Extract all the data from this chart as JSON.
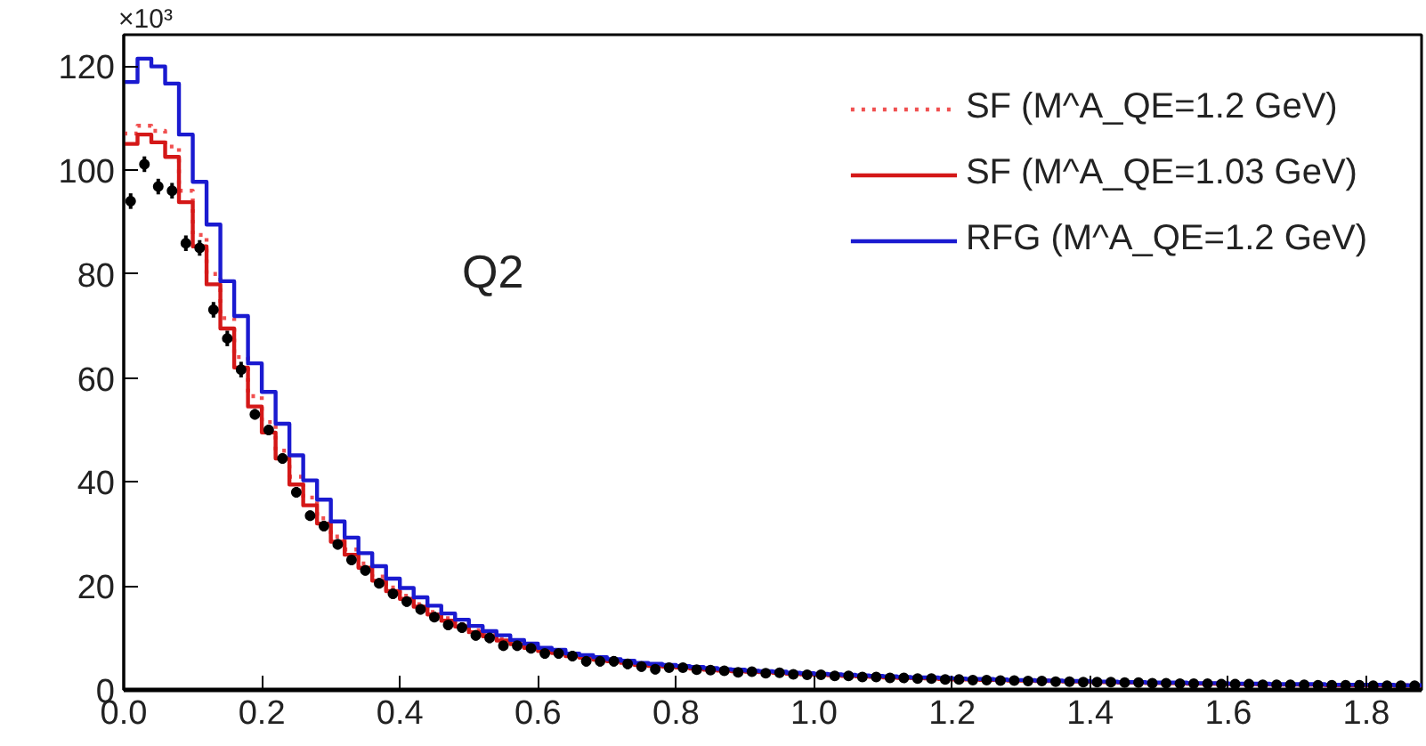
{
  "chart_data": {
    "type": "histogram",
    "bins": [
      0,
      0.02,
      0.04,
      0.06,
      0.08,
      0.1,
      0.12,
      0.14,
      0.16,
      0.18,
      0.2,
      0.22,
      0.24,
      0.26,
      0.28,
      0.3,
      0.32,
      0.34,
      0.36,
      0.38,
      0.4,
      0.42,
      0.44,
      0.46,
      0.48,
      0.5,
      0.52,
      0.54,
      0.56,
      0.58,
      0.6,
      0.62,
      0.64,
      0.66,
      0.68,
      0.7,
      0.72,
      0.74,
      0.76,
      0.78,
      0.8,
      0.82,
      0.84,
      0.86,
      0.88,
      0.9,
      0.92,
      0.94,
      0.96,
      0.98,
      1.0,
      1.02,
      1.04,
      1.06,
      1.08,
      1.1,
      1.12,
      1.14,
      1.16,
      1.18,
      1.2,
      1.22,
      1.24,
      1.26,
      1.28,
      1.3,
      1.32,
      1.34,
      1.36,
      1.38,
      1.4,
      1.42,
      1.44,
      1.46,
      1.48,
      1.5,
      1.52,
      1.54,
      1.56,
      1.58,
      1.6,
      1.62,
      1.64,
      1.66,
      1.68,
      1.7,
      1.72,
      1.74,
      1.76,
      1.78,
      1.8,
      1.82,
      1.84,
      1.86,
      1.88
    ],
    "series": [
      {
        "name": "SF (M^A_QE=1.2 GeV)",
        "color": "#f05050",
        "line_style": "dotted",
        "values": [
          107.0,
          108.5,
          107.5,
          104.5,
          96.0,
          87.5,
          80.0,
          71.5,
          64.0,
          56.5,
          51.5,
          46.0,
          41.0,
          37.0,
          33.0,
          29.5,
          27.0,
          24.3,
          21.8,
          19.7,
          18.1,
          16.5,
          15.0,
          13.8,
          12.6,
          11.5,
          10.6,
          9.8,
          9.1,
          8.4,
          7.8,
          7.3,
          6.8,
          6.4,
          6.0,
          5.7,
          5.4,
          5.0,
          4.8,
          4.6,
          4.4,
          4.2,
          4.0,
          3.8,
          3.7,
          3.6,
          3.5,
          3.4,
          3.2,
          3.1,
          3.0,
          2.9,
          2.8,
          2.7,
          2.6,
          2.5,
          2.4,
          2.3,
          2.3,
          2.2,
          2.1,
          2.0,
          2.0,
          1.9,
          1.9,
          1.8,
          1.8,
          1.7,
          1.7,
          1.6,
          1.6,
          1.5,
          1.5,
          1.4,
          1.4,
          1.3,
          1.3,
          1.3,
          1.2,
          1.2,
          1.2,
          1.1,
          1.1,
          1.1,
          1.0,
          1.0,
          1.0,
          1.0,
          0.9,
          0.9,
          0.9,
          0.9,
          0.9,
          0.8
        ]
      },
      {
        "name": "SF (M^A_QE=1.03 GeV)",
        "color": "#d41818",
        "line_style": "solid",
        "values": [
          105.0,
          106.8,
          105.3,
          102.5,
          93.8,
          85.3,
          78.0,
          69.5,
          62.0,
          54.5,
          49.5,
          44.5,
          39.5,
          35.5,
          32.0,
          28.5,
          26.0,
          23.5,
          21.0,
          19.0,
          17.5,
          16.0,
          14.5,
          13.3,
          12.2,
          11.1,
          10.3,
          9.5,
          8.8,
          8.1,
          7.5,
          7.1,
          6.5,
          6.2,
          5.8,
          5.5,
          5.2,
          4.8,
          4.6,
          4.5,
          4.3,
          4.1,
          3.9,
          3.7,
          3.6,
          3.5,
          3.4,
          3.3,
          3.1,
          3.0,
          2.9,
          2.8,
          2.7,
          2.6,
          2.5,
          2.4,
          2.3,
          2.3,
          2.2,
          2.1,
          2.0,
          2.0,
          1.9,
          1.9,
          1.8,
          1.8,
          1.7,
          1.7,
          1.6,
          1.6,
          1.5,
          1.5,
          1.4,
          1.4,
          1.3,
          1.3,
          1.3,
          1.2,
          1.2,
          1.2,
          1.1,
          1.1,
          1.1,
          1.0,
          1.0,
          1.0,
          1.0,
          0.9,
          0.9,
          0.9,
          0.9,
          0.9,
          0.8,
          0.8
        ]
      },
      {
        "name": "RFG (M^A_QE=1.2 GeV)",
        "color": "#1a1ad0",
        "line_style": "solid",
        "values": [
          116.9,
          121.4,
          119.9,
          116.6,
          106.8,
          97.7,
          89.5,
          78.6,
          71.9,
          62.8,
          57.3,
          51.2,
          45.1,
          40.3,
          36.6,
          32.4,
          29.3,
          26.3,
          23.8,
          21.4,
          19.6,
          17.8,
          16.2,
          14.7,
          13.5,
          12.3,
          11.3,
          10.5,
          9.6,
          8.9,
          8.1,
          7.7,
          7.0,
          6.7,
          6.3,
          5.9,
          5.6,
          5.2,
          5.0,
          4.8,
          4.6,
          4.4,
          4.2,
          4.0,
          3.9,
          3.7,
          3.6,
          3.5,
          3.3,
          3.2,
          3.1,
          3.0,
          2.9,
          2.8,
          2.7,
          2.6,
          2.5,
          2.4,
          2.4,
          2.3,
          2.2,
          2.1,
          2.1,
          2.0,
          1.9,
          1.9,
          1.8,
          1.8,
          1.7,
          1.7,
          1.6,
          1.6,
          1.5,
          1.5,
          1.4,
          1.4,
          1.4,
          1.3,
          1.3,
          1.3,
          1.2,
          1.2,
          1.2,
          1.1,
          1.1,
          1.1,
          1.1,
          1.0,
          1.0,
          1.0,
          1.0,
          1.0,
          0.9,
          0.9
        ]
      },
      {
        "type": "scatter",
        "color": "#000000",
        "marker": "circle",
        "x": [
          0.01,
          0.03,
          0.05,
          0.07,
          0.09,
          0.11,
          0.13,
          0.15,
          0.17,
          0.19,
          0.21,
          0.23,
          0.25,
          0.27,
          0.29,
          0.31,
          0.33,
          0.35,
          0.37,
          0.39,
          0.41,
          0.43,
          0.45,
          0.47,
          0.49,
          0.51,
          0.53,
          0.55,
          0.57,
          0.59,
          0.61,
          0.63,
          0.65,
          0.67,
          0.69,
          0.71,
          0.73,
          0.75,
          0.77,
          0.79,
          0.81,
          0.83,
          0.85,
          0.87,
          0.89,
          0.91,
          0.93,
          0.95,
          0.97,
          0.99,
          1.01,
          1.03,
          1.05,
          1.07,
          1.09,
          1.11,
          1.13,
          1.15,
          1.17,
          1.19,
          1.21,
          1.23,
          1.25,
          1.27,
          1.29,
          1.31,
          1.33,
          1.35,
          1.37,
          1.39,
          1.41,
          1.43,
          1.45,
          1.47,
          1.49,
          1.51,
          1.53,
          1.55,
          1.57,
          1.59,
          1.61,
          1.63,
          1.65,
          1.67,
          1.69,
          1.71,
          1.73,
          1.75,
          1.77,
          1.79,
          1.81,
          1.83,
          1.85,
          1.87
        ],
        "values": [
          94.0,
          101.1,
          96.8,
          96.0,
          85.9,
          85.0,
          73.1,
          67.6,
          61.6,
          53.0,
          50.0,
          44.5,
          38.0,
          33.5,
          31.5,
          28.0,
          25.0,
          23.0,
          20.5,
          18.5,
          17.0,
          15.5,
          14.0,
          12.5,
          12.0,
          10.5,
          10.0,
          8.5,
          8.5,
          8.0,
          7.0,
          7.0,
          6.5,
          5.5,
          5.5,
          5.5,
          5.0,
          4.5,
          4.0,
          4.3,
          4.3,
          3.9,
          3.8,
          3.7,
          3.4,
          3.5,
          3.2,
          3.3,
          3.0,
          2.9,
          2.9,
          2.7,
          2.7,
          2.5,
          2.5,
          2.3,
          2.3,
          2.2,
          2.2,
          2.0,
          2.0,
          1.9,
          1.9,
          1.8,
          1.8,
          1.7,
          1.7,
          1.6,
          1.6,
          1.5,
          1.5,
          1.5,
          1.4,
          1.4,
          1.3,
          1.3,
          1.2,
          1.2,
          1.2,
          1.1,
          1.1,
          1.1,
          1.0,
          1.0,
          1.0,
          1.0,
          0.9,
          0.9,
          0.9,
          0.9,
          0.8,
          0.8,
          0.8,
          0.8
        ],
        "errors": [
          1.5,
          1.5,
          1.5,
          1.5,
          1.5,
          1.5,
          1.5,
          1.5,
          1.5,
          1.0,
          1.0,
          1.0,
          1.0,
          1.0,
          1.0,
          1.0,
          1.0,
          1.0,
          1.0,
          1.0,
          1.0,
          1.0,
          1.0,
          1.0,
          1.0,
          1.0,
          1.0,
          1.0,
          1.0,
          1.0,
          1.0,
          1.0,
          1.0,
          1.0,
          1.0,
          1.0,
          1.0,
          1.0,
          1.0,
          0.5,
          0.5,
          0.5,
          0.5,
          0.5,
          0.5,
          0.5,
          0.5,
          0.5,
          0.5,
          0.5,
          0.5,
          0.5,
          0.5,
          0.5,
          0.5,
          0.5,
          0.5,
          0.5,
          0.5,
          0.5,
          0.5,
          0.5,
          0.5,
          0.5,
          0.5,
          0.5,
          0.5,
          0.5,
          0.5,
          0.5,
          0.5,
          0.5,
          0.5,
          0.5,
          0.5,
          0.5,
          0.5,
          0.5,
          0.5,
          0.5,
          0.5,
          0.5,
          0.5,
          0.5,
          0.5,
          0.5,
          0.5,
          0.5,
          0.5,
          0.5,
          0.5,
          0.5,
          0.5,
          0.5
        ]
      }
    ],
    "xlim": [
      0,
      1.88
    ],
    "ylim": [
      0,
      126
    ],
    "xticks": [
      {
        "value": 0,
        "label": "0.0"
      },
      {
        "value": 0.2,
        "label": "0.2"
      },
      {
        "value": 0.4,
        "label": "0.4"
      },
      {
        "value": 0.6,
        "label": "0.6"
      },
      {
        "value": 0.8,
        "label": "0.8"
      },
      {
        "value": 1.0,
        "label": "1.0"
      },
      {
        "value": 1.2,
        "label": "1.2"
      },
      {
        "value": 1.4,
        "label": "1.4"
      },
      {
        "value": 1.6,
        "label": "1.6"
      },
      {
        "value": 1.8,
        "label": "1.8"
      }
    ],
    "yticks": [
      0,
      20,
      40,
      60,
      80,
      100,
      120
    ],
    "annotations": [
      "×10³",
      "Q2"
    ],
    "legend": "top right",
    "grid": false
  }
}
